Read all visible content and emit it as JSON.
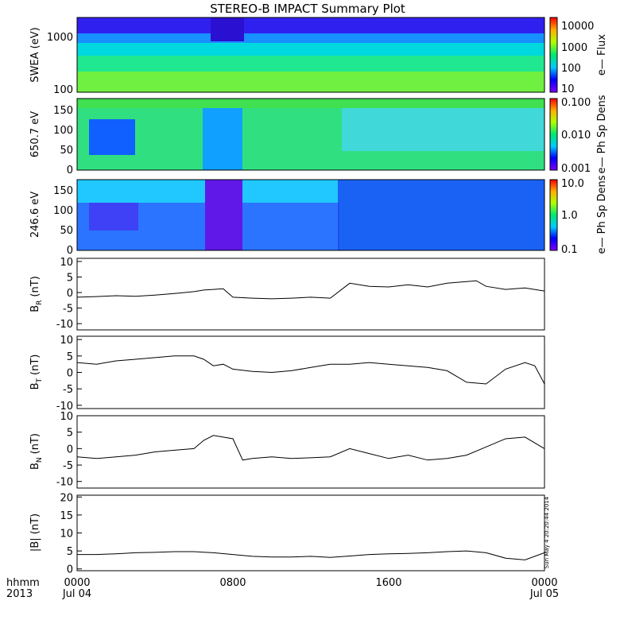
{
  "title": "STEREO-B IMPACT Summary Plot",
  "x_axis": {
    "row1_label": "hhmm",
    "row2_label": "2013",
    "ticks": [
      {
        "time": "0000",
        "date": "Jul 04",
        "hour": 0
      },
      {
        "time": "0800",
        "date": "",
        "hour": 8
      },
      {
        "time": "1600",
        "date": "",
        "hour": 16
      },
      {
        "time": "0000",
        "date": "Jul 05",
        "hour": 24
      }
    ]
  },
  "timestamp": "Sun May  4 20:20:44 2014",
  "chart_data": [
    {
      "type": "heatmap",
      "ylabel": "SWEA (eV)",
      "y_scale": "log",
      "ylim": [
        100,
        2000
      ],
      "y_ticks": [
        "100",
        "1000"
      ],
      "colorbar_label": "e— Flux",
      "colorbar_scale": "log",
      "colorbar_ticks": [
        "10",
        "100",
        "1000",
        "10000"
      ],
      "colorbar_range": [
        10,
        20000
      ]
    },
    {
      "type": "heatmap",
      "ylabel": "650.7 eV",
      "ylim": [
        0,
        180
      ],
      "y_ticks": [
        "0",
        "50",
        "100",
        "150"
      ],
      "colorbar_label": "e— Ph Sp Dens",
      "colorbar_scale": "log",
      "colorbar_ticks": [
        "0.001",
        "0.010",
        "0.100"
      ],
      "colorbar_range": [
        0.001,
        0.1
      ]
    },
    {
      "type": "heatmap",
      "ylabel": "246.6 eV",
      "ylim": [
        0,
        180
      ],
      "y_ticks": [
        "0",
        "50",
        "100",
        "150"
      ],
      "colorbar_label": "e— Ph Sp Dens",
      "colorbar_scale": "log",
      "colorbar_ticks": [
        "0.1",
        "1.0",
        "10.0"
      ],
      "colorbar_range": [
        0.1,
        10
      ]
    },
    {
      "type": "line",
      "ylabel_main": "B",
      "ylabel_sub": "R",
      "ylabel_unit": "(nT)",
      "ylim": [
        -12,
        11
      ],
      "y_ticks": [
        "-10",
        "-5",
        "0",
        "5",
        "10"
      ],
      "x": [
        0,
        1,
        2,
        3,
        4,
        5,
        6,
        6.5,
        7,
        7.5,
        8,
        9,
        10,
        11,
        12,
        13,
        14,
        15,
        16,
        17,
        18,
        19,
        20,
        20.5,
        21,
        22,
        23,
        24
      ],
      "values": [
        -1.5,
        -1.3,
        -1.0,
        -1.2,
        -0.8,
        -0.3,
        0.3,
        0.8,
        1.0,
        1.2,
        -1.5,
        -1.8,
        -2.0,
        -1.8,
        -1.5,
        -1.8,
        3.0,
        2.0,
        1.8,
        2.5,
        1.8,
        3.0,
        3.5,
        3.8,
        2.0,
        1.0,
        1.5,
        0.5
      ]
    },
    {
      "type": "line",
      "ylabel_main": "B",
      "ylabel_sub": "T",
      "ylabel_unit": "(nT)",
      "ylim": [
        -11,
        11
      ],
      "y_ticks": [
        "-10",
        "-5",
        "0",
        "5",
        "10"
      ],
      "x": [
        0,
        1,
        2,
        3,
        4,
        5,
        6,
        6.5,
        7,
        7.5,
        8,
        9,
        10,
        11,
        12,
        13,
        14,
        15,
        16,
        17,
        18,
        19,
        20,
        21,
        22,
        23,
        23.5,
        24
      ],
      "values": [
        3.0,
        2.5,
        3.5,
        4.0,
        4.5,
        5.0,
        5.0,
        4.0,
        2.0,
        2.5,
        1.0,
        0.3,
        0.0,
        0.5,
        1.5,
        2.5,
        2.5,
        3.0,
        2.5,
        2.0,
        1.5,
        0.5,
        -3.0,
        -3.5,
        1.0,
        3.0,
        2.0,
        -3.5
      ]
    },
    {
      "type": "line",
      "ylabel_main": "B",
      "ylabel_sub": "N",
      "ylabel_unit": "(nT)",
      "ylim": [
        -12,
        10
      ],
      "y_ticks": [
        "-10",
        "-5",
        "0",
        "5",
        "10"
      ],
      "x": [
        0,
        1,
        2,
        3,
        4,
        5,
        6,
        6.5,
        7,
        7.5,
        8,
        8.5,
        9,
        10,
        11,
        12,
        13,
        14,
        15,
        16,
        17,
        18,
        19,
        20,
        21,
        22,
        23,
        24
      ],
      "values": [
        -2.5,
        -3.0,
        -2.5,
        -2.0,
        -1.0,
        -0.5,
        0.0,
        2.5,
        4.0,
        3.5,
        3.0,
        -3.5,
        -3.0,
        -2.5,
        -3.0,
        -2.8,
        -2.5,
        0.0,
        -1.5,
        -3.0,
        -2.0,
        -3.5,
        -3.0,
        -2.0,
        0.5,
        3.0,
        3.5,
        0.0
      ]
    },
    {
      "type": "line",
      "ylabel": "|B| (nT)",
      "ylim": [
        -0.5,
        20.5
      ],
      "y_ticks": [
        "0",
        "5",
        "10",
        "15",
        "20"
      ],
      "x": [
        0,
        1,
        2,
        3,
        4,
        5,
        6,
        7,
        8,
        9,
        10,
        11,
        12,
        13,
        14,
        15,
        16,
        17,
        18,
        19,
        20,
        21,
        22,
        23,
        24
      ],
      "values": [
        4.0,
        4.0,
        4.2,
        4.5,
        4.6,
        4.8,
        4.8,
        4.5,
        4.0,
        3.5,
        3.3,
        3.3,
        3.5,
        3.2,
        3.6,
        4.0,
        4.2,
        4.3,
        4.5,
        4.8,
        5.0,
        4.5,
        3.0,
        2.5,
        4.5
      ]
    }
  ]
}
